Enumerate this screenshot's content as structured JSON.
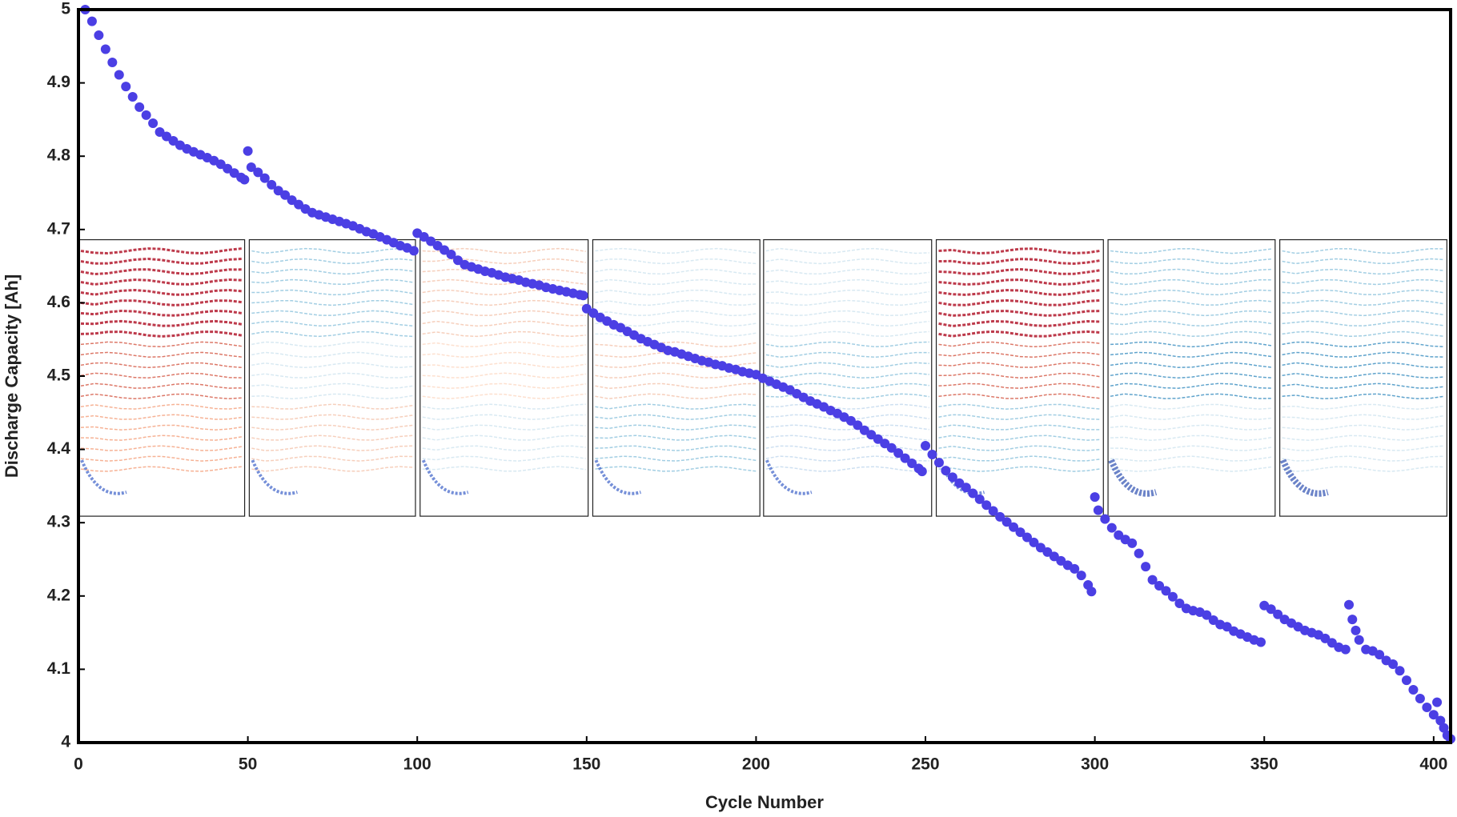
{
  "chart_data": {
    "type": "scatter",
    "xlabel": "Cycle Number",
    "ylabel": "Discharge Capacity [Ah]",
    "xlim": [
      0,
      405
    ],
    "ylim": [
      4,
      5
    ],
    "xticks": [
      0,
      50,
      100,
      150,
      200,
      250,
      300,
      350,
      400
    ],
    "yticks": [
      4,
      4.1,
      4.2,
      4.3,
      4.4,
      4.5,
      4.6,
      4.7,
      4.8,
      4.9,
      5
    ],
    "color": "#4b3fe4",
    "x": [
      2,
      4,
      6,
      8,
      10,
      12,
      14,
      16,
      18,
      20,
      22,
      24,
      26,
      28,
      30,
      32,
      34,
      36,
      38,
      40,
      42,
      44,
      46,
      48,
      49,
      50,
      51,
      53,
      55,
      57,
      59,
      61,
      63,
      65,
      67,
      69,
      71,
      73,
      75,
      77,
      79,
      81,
      83,
      85,
      87,
      89,
      91,
      93,
      95,
      97,
      99,
      100,
      102,
      104,
      106,
      108,
      110,
      112,
      114,
      116,
      118,
      120,
      122,
      124,
      126,
      128,
      130,
      132,
      134,
      136,
      138,
      140,
      142,
      144,
      146,
      148,
      149,
      150,
      152,
      154,
      156,
      158,
      160,
      162,
      164,
      166,
      168,
      170,
      172,
      174,
      176,
      178,
      180,
      182,
      184,
      186,
      188,
      190,
      192,
      194,
      196,
      198,
      200,
      202,
      204,
      206,
      208,
      210,
      212,
      214,
      216,
      218,
      220,
      222,
      224,
      226,
      228,
      230,
      232,
      234,
      236,
      238,
      240,
      242,
      244,
      246,
      248,
      249,
      250,
      252,
      254,
      256,
      258,
      260,
      262,
      264,
      266,
      268,
      270,
      272,
      274,
      276,
      278,
      280,
      282,
      284,
      286,
      288,
      290,
      292,
      294,
      296,
      298,
      299,
      300,
      301,
      303,
      305,
      307,
      309,
      311,
      313,
      315,
      317,
      319,
      321,
      323,
      325,
      327,
      329,
      331,
      333,
      335,
      337,
      339,
      341,
      343,
      345,
      347,
      349,
      350,
      352,
      354,
      356,
      358,
      360,
      362,
      364,
      366,
      368,
      370,
      372,
      374,
      375,
      376,
      377,
      378,
      380,
      382,
      384,
      386,
      388,
      390,
      392,
      394,
      396,
      398,
      400,
      401,
      402,
      403,
      404,
      405
    ],
    "values": [
      5.0,
      4.984,
      4.965,
      4.946,
      4.928,
      4.911,
      4.895,
      4.881,
      4.867,
      4.856,
      4.845,
      4.833,
      4.827,
      4.821,
      4.815,
      4.81,
      4.806,
      4.802,
      4.798,
      4.794,
      4.789,
      4.783,
      4.777,
      4.771,
      4.768,
      4.807,
      4.785,
      4.778,
      4.77,
      4.761,
      4.753,
      4.747,
      4.74,
      4.734,
      4.728,
      4.723,
      4.72,
      4.717,
      4.714,
      4.711,
      4.708,
      4.705,
      4.701,
      4.697,
      4.694,
      4.69,
      4.686,
      4.682,
      4.678,
      4.675,
      4.671,
      4.695,
      4.69,
      4.684,
      4.678,
      4.672,
      4.666,
      4.658,
      4.652,
      4.649,
      4.646,
      4.643,
      4.641,
      4.638,
      4.635,
      4.633,
      4.631,
      4.628,
      4.626,
      4.624,
      4.621,
      4.619,
      4.617,
      4.615,
      4.613,
      4.611,
      4.61,
      4.592,
      4.586,
      4.58,
      4.575,
      4.57,
      4.566,
      4.561,
      4.556,
      4.551,
      4.547,
      4.543,
      4.539,
      4.535,
      4.533,
      4.53,
      4.527,
      4.524,
      4.521,
      4.519,
      4.516,
      4.514,
      4.511,
      4.509,
      4.506,
      4.504,
      4.502,
      4.497,
      4.493,
      4.489,
      4.485,
      4.481,
      4.476,
      4.471,
      4.466,
      4.462,
      4.458,
      4.453,
      4.449,
      4.444,
      4.439,
      4.433,
      4.426,
      4.42,
      4.414,
      4.408,
      4.402,
      4.395,
      4.388,
      4.381,
      4.374,
      4.37,
      4.405,
      4.393,
      4.382,
      4.371,
      4.362,
      4.354,
      4.348,
      4.34,
      4.332,
      4.324,
      4.316,
      4.308,
      4.301,
      4.294,
      4.287,
      4.28,
      4.273,
      4.266,
      4.26,
      4.254,
      4.248,
      4.242,
      4.237,
      4.228,
      4.215,
      4.206,
      4.335,
      4.317,
      4.305,
      4.293,
      4.283,
      4.277,
      4.272,
      4.258,
      4.24,
      4.222,
      4.214,
      4.207,
      4.199,
      4.19,
      4.183,
      4.18,
      4.178,
      4.174,
      4.167,
      4.161,
      4.158,
      4.152,
      4.148,
      4.144,
      4.14,
      4.137,
      4.187,
      4.182,
      4.175,
      4.168,
      4.163,
      4.158,
      4.153,
      4.15,
      4.147,
      4.142,
      4.136,
      4.13,
      4.127,
      4.188,
      4.168,
      4.153,
      4.14,
      4.127,
      4.125,
      4.12,
      4.112,
      4.107,
      4.098,
      4.085,
      4.072,
      4.06,
      4.048,
      4.038,
      4.055,
      4.03,
      4.02,
      4.01,
      4.005
    ]
  }
}
